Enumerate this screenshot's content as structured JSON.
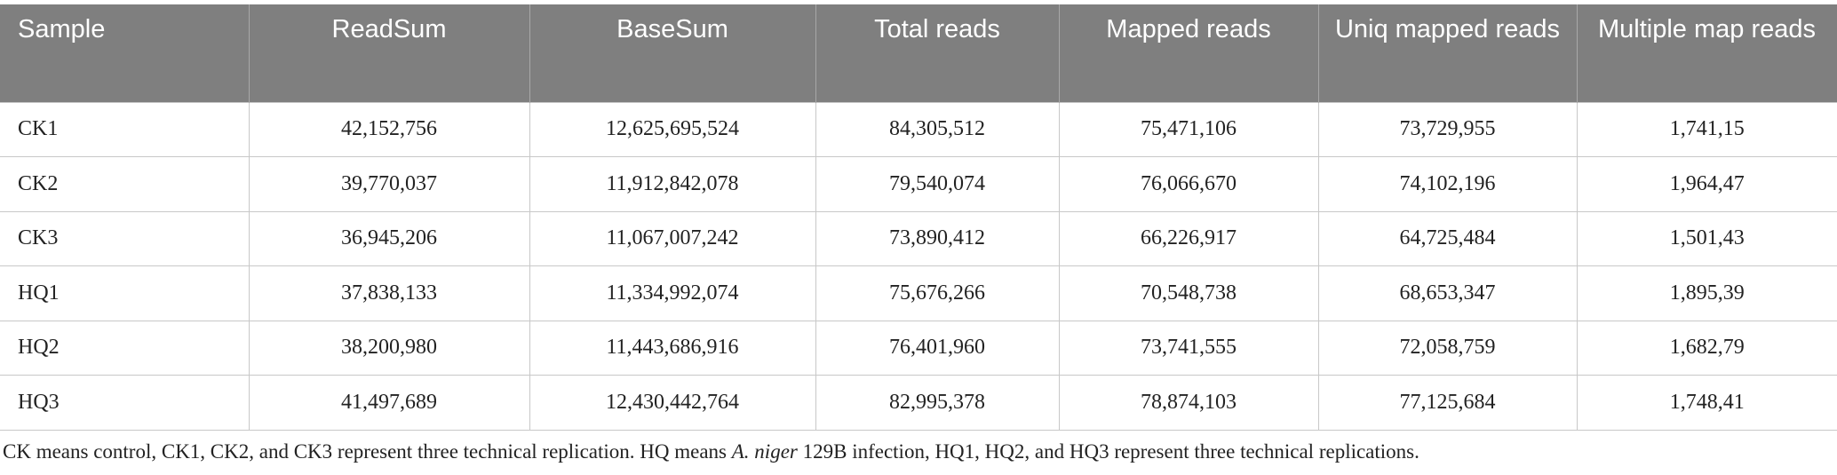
{
  "table": {
    "header": [
      "Sample",
      "ReadSum",
      "BaseSum",
      "Total reads",
      "Mapped reads",
      "Uniq mapped reads",
      "Multiple map reads"
    ],
    "rows": [
      [
        "CK1",
        "42,152,756",
        "12,625,695,524",
        "84,305,512",
        "75,471,106",
        "73,729,955",
        "1,741,15"
      ],
      [
        "CK2",
        "39,770,037",
        "11,912,842,078",
        "79,540,074",
        "76,066,670",
        "74,102,196",
        "1,964,47"
      ],
      [
        "CK3",
        "36,945,206",
        "11,067,007,242",
        "73,890,412",
        "66,226,917",
        "64,725,484",
        "1,501,43"
      ],
      [
        "HQ1",
        "37,838,133",
        "11,334,992,074",
        "75,676,266",
        "70,548,738",
        "68,653,347",
        "1,895,39"
      ],
      [
        "HQ2",
        "38,200,980",
        "11,443,686,916",
        "76,401,960",
        "73,741,555",
        "72,058,759",
        "1,682,79"
      ],
      [
        "HQ3",
        "41,497,689",
        "12,430,442,764",
        "82,995,378",
        "78,874,103",
        "77,125,684",
        "1,748,41"
      ]
    ]
  },
  "footnote": [
    "CK means control, CK1, CK2, and CK3 represent three technical replication. HQ means",
    "A. niger",
    "129B infection, HQ1, HQ2, and HQ3 represent three technical replications."
  ]
}
